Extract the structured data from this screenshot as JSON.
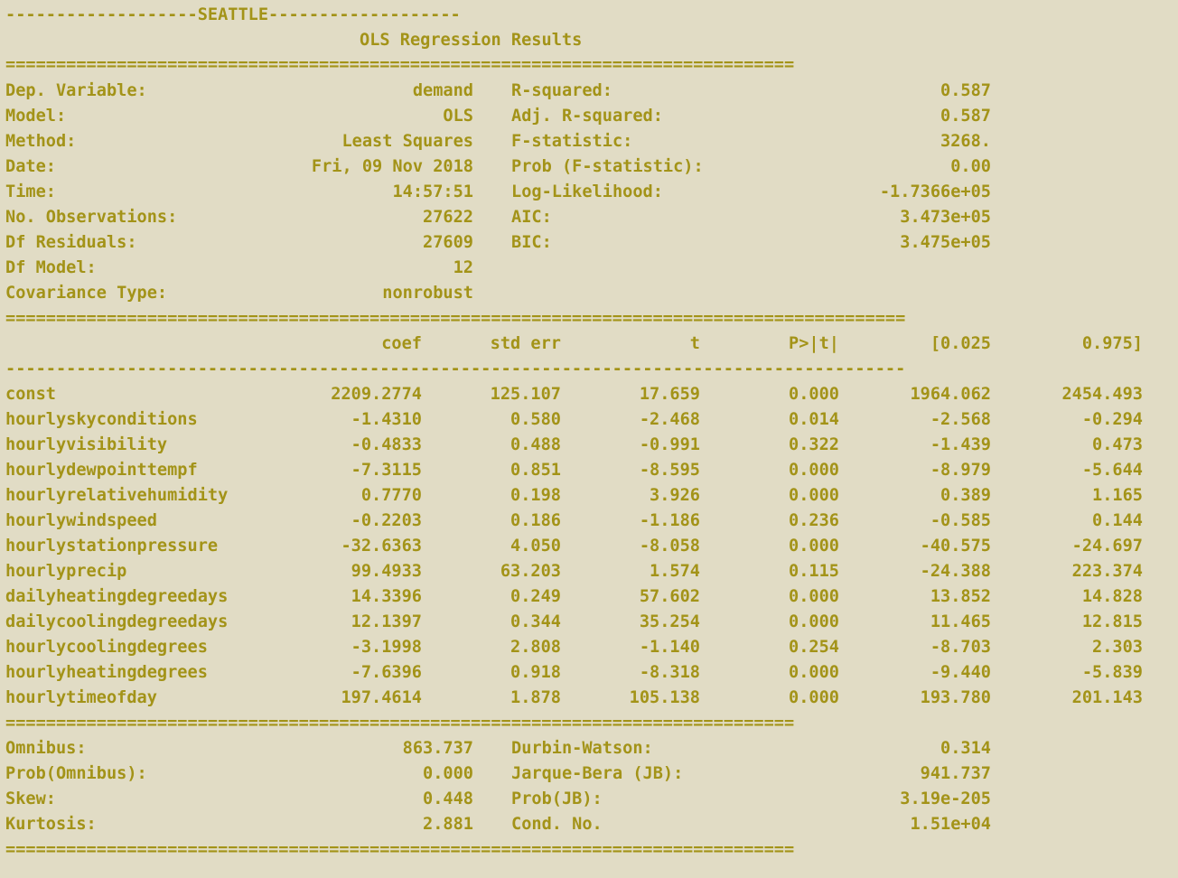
{
  "header": {
    "banner": "-------------------SEATTLE-------------------",
    "title": "OLS Regression Results"
  },
  "colors": {
    "background": "#e1dcc5",
    "text": "#a39318"
  },
  "rules": {
    "double_short": "==============================================================================",
    "double_long": "=========================================================================================",
    "single_long": "-----------------------------------------------------------------------------------------"
  },
  "summary": [
    {
      "label": "Dep. Variable:",
      "value": "demand",
      "label2": "R-squared:",
      "value2": "0.587"
    },
    {
      "label": "Model:",
      "value": "OLS",
      "label2": "Adj. R-squared:",
      "value2": "0.587"
    },
    {
      "label": "Method:",
      "value": "Least Squares",
      "label2": "F-statistic:",
      "value2": "3268."
    },
    {
      "label": "Date:",
      "value": "Fri, 09 Nov 2018",
      "label2": "Prob (F-statistic):",
      "value2": "0.00"
    },
    {
      "label": "Time:",
      "value": "14:57:51",
      "label2": "Log-Likelihood:",
      "value2": "-1.7366e+05"
    },
    {
      "label": "No. Observations:",
      "value": "27622",
      "label2": "AIC:",
      "value2": "3.473e+05"
    },
    {
      "label": "Df Residuals:",
      "value": "27609",
      "label2": "BIC:",
      "value2": "3.475e+05"
    },
    {
      "label": "Df Model:",
      "value": "12",
      "label2": "",
      "value2": ""
    },
    {
      "label": "Covariance Type:",
      "value": "nonrobust",
      "label2": "",
      "value2": ""
    }
  ],
  "coef_table": {
    "headers": [
      "coef",
      "std err",
      "t",
      "P>|t|",
      "[0.025",
      "0.975]"
    ],
    "rows": [
      {
        "name": "const",
        "cells": [
          "2209.2774",
          "125.107",
          "17.659",
          "0.000",
          "1964.062",
          "2454.493"
        ]
      },
      {
        "name": "hourlyskyconditions",
        "cells": [
          "-1.4310",
          "0.580",
          "-2.468",
          "0.014",
          "-2.568",
          "-0.294"
        ]
      },
      {
        "name": "hourlyvisibility",
        "cells": [
          "-0.4833",
          "0.488",
          "-0.991",
          "0.322",
          "-1.439",
          "0.473"
        ]
      },
      {
        "name": "hourlydewpointtempf",
        "cells": [
          "-7.3115",
          "0.851",
          "-8.595",
          "0.000",
          "-8.979",
          "-5.644"
        ]
      },
      {
        "name": "hourlyrelativehumidity",
        "cells": [
          "0.7770",
          "0.198",
          "3.926",
          "0.000",
          "0.389",
          "1.165"
        ]
      },
      {
        "name": "hourlywindspeed",
        "cells": [
          "-0.2203",
          "0.186",
          "-1.186",
          "0.236",
          "-0.585",
          "0.144"
        ]
      },
      {
        "name": "hourlystationpressure",
        "cells": [
          "-32.6363",
          "4.050",
          "-8.058",
          "0.000",
          "-40.575",
          "-24.697"
        ]
      },
      {
        "name": "hourlyprecip",
        "cells": [
          "99.4933",
          "63.203",
          "1.574",
          "0.115",
          "-24.388",
          "223.374"
        ]
      },
      {
        "name": "dailyheatingdegreedays",
        "cells": [
          "14.3396",
          "0.249",
          "57.602",
          "0.000",
          "13.852",
          "14.828"
        ]
      },
      {
        "name": "dailycoolingdegreedays",
        "cells": [
          "12.1397",
          "0.344",
          "35.254",
          "0.000",
          "11.465",
          "12.815"
        ]
      },
      {
        "name": "hourlycoolingdegrees",
        "cells": [
          "-3.1998",
          "2.808",
          "-1.140",
          "0.254",
          "-8.703",
          "2.303"
        ]
      },
      {
        "name": "hourlyheatingdegrees",
        "cells": [
          "-7.6396",
          "0.918",
          "-8.318",
          "0.000",
          "-9.440",
          "-5.839"
        ]
      },
      {
        "name": "hourlytimeofday",
        "cells": [
          "197.4614",
          "1.878",
          "105.138",
          "0.000",
          "193.780",
          "201.143"
        ]
      }
    ]
  },
  "diagnostics": [
    {
      "label": "Omnibus:",
      "value": "863.737",
      "label2": "Durbin-Watson:",
      "value2": "0.314"
    },
    {
      "label": "Prob(Omnibus):",
      "value": "0.000",
      "label2": "Jarque-Bera (JB):",
      "value2": "941.737"
    },
    {
      "label": "Skew:",
      "value": "0.448",
      "label2": "Prob(JB):",
      "value2": "3.19e-205"
    },
    {
      "label": "Kurtosis:",
      "value": "2.881",
      "label2": "Cond. No.",
      "value2": "1.51e+04"
    }
  ]
}
